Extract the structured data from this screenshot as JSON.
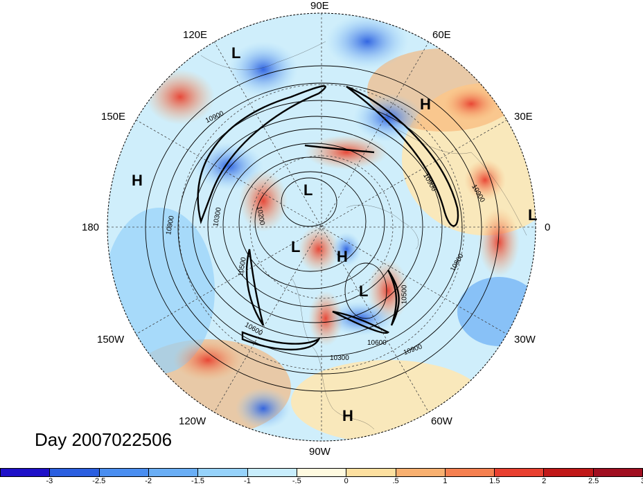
{
  "title": "Day 2007022506",
  "longitude_labels": {
    "e90": "90E",
    "e60": "60E",
    "e30": "30E",
    "e0": "0",
    "w30": "30W",
    "w60": "60W",
    "w90": "90W",
    "w120": "120W",
    "w150": "150W",
    "e180": "180",
    "e150": "150E",
    "e120": "120E"
  },
  "pressure_centers": [
    {
      "label": "L",
      "region": "Siberia north"
    },
    {
      "label": "H",
      "region": "Europe"
    },
    {
      "label": "H",
      "region": "North Pacific west"
    },
    {
      "label": "L",
      "region": "Atlantic east edge"
    },
    {
      "label": "L",
      "region": "Arctic Siberia"
    },
    {
      "label": "L",
      "region": "Canadian Arctic"
    },
    {
      "label": "H",
      "region": "Greenland"
    },
    {
      "label": "L",
      "region": "North Atlantic"
    },
    {
      "label": "H",
      "region": "Caribbean"
    }
  ],
  "contour_labels": [
    "10900",
    "10900",
    "10900",
    "10900",
    "10300",
    "10200",
    "10500",
    "10600",
    "10600",
    "10800",
    "10900",
    "10300",
    "10200",
    "10500",
    "10300"
  ],
  "colorbar": {
    "colors": [
      "#1e10c8",
      "#2b5fe0",
      "#4a8ef0",
      "#6aaef5",
      "#96d2fa",
      "#c8edfc",
      "#fffae0",
      "#fde0a0",
      "#f8b070",
      "#f58050",
      "#e84030",
      "#c01818",
      "#a00e20"
    ],
    "ticks": [
      "-3",
      "-2.5",
      "-2",
      "-1.5",
      "-1",
      "-.5",
      "0",
      ".5",
      "1",
      "1.5",
      "2",
      "2.5",
      "3"
    ]
  }
}
